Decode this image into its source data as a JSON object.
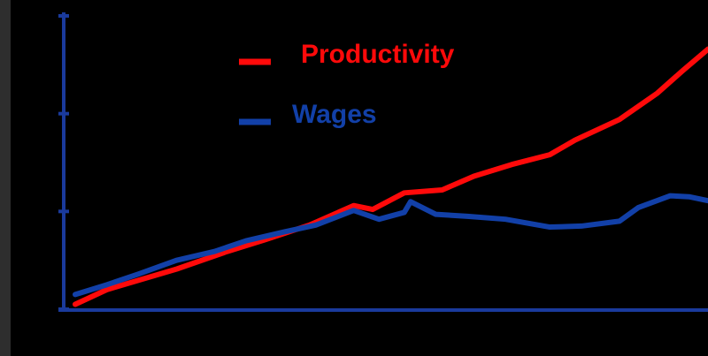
{
  "chart_data": {
    "type": "line",
    "series": [
      {
        "name": "Productivity",
        "color": "#ff0a0a",
        "x": [
          0,
          5,
          16,
          24,
          30,
          37,
          44,
          47,
          52,
          58,
          63,
          69,
          75,
          79,
          86,
          92,
          96,
          100
        ],
        "values": [
          5,
          20,
          41,
          59,
          71,
          86,
          106,
          102,
          119,
          122,
          136,
          148,
          158,
          173,
          194,
          221,
          244,
          266
        ]
      },
      {
        "name": "Wages",
        "color": "#1240a8",
        "x": [
          0,
          5,
          10,
          16,
          22,
          27,
          33,
          38,
          44,
          48,
          52,
          53,
          57,
          62,
          68,
          75,
          80,
          86,
          89,
          94,
          97,
          100
        ],
        "values": [
          15,
          25,
          36,
          50,
          59,
          70,
          79,
          86,
          101,
          92,
          99,
          110,
          97,
          95,
          92,
          84,
          85,
          90,
          104,
          116,
          115,
          111
        ]
      }
    ],
    "xlim": [
      0,
      100
    ],
    "ylim": [
      0,
      300
    ],
    "yticks": [
      0,
      100,
      200,
      300
    ]
  }
}
